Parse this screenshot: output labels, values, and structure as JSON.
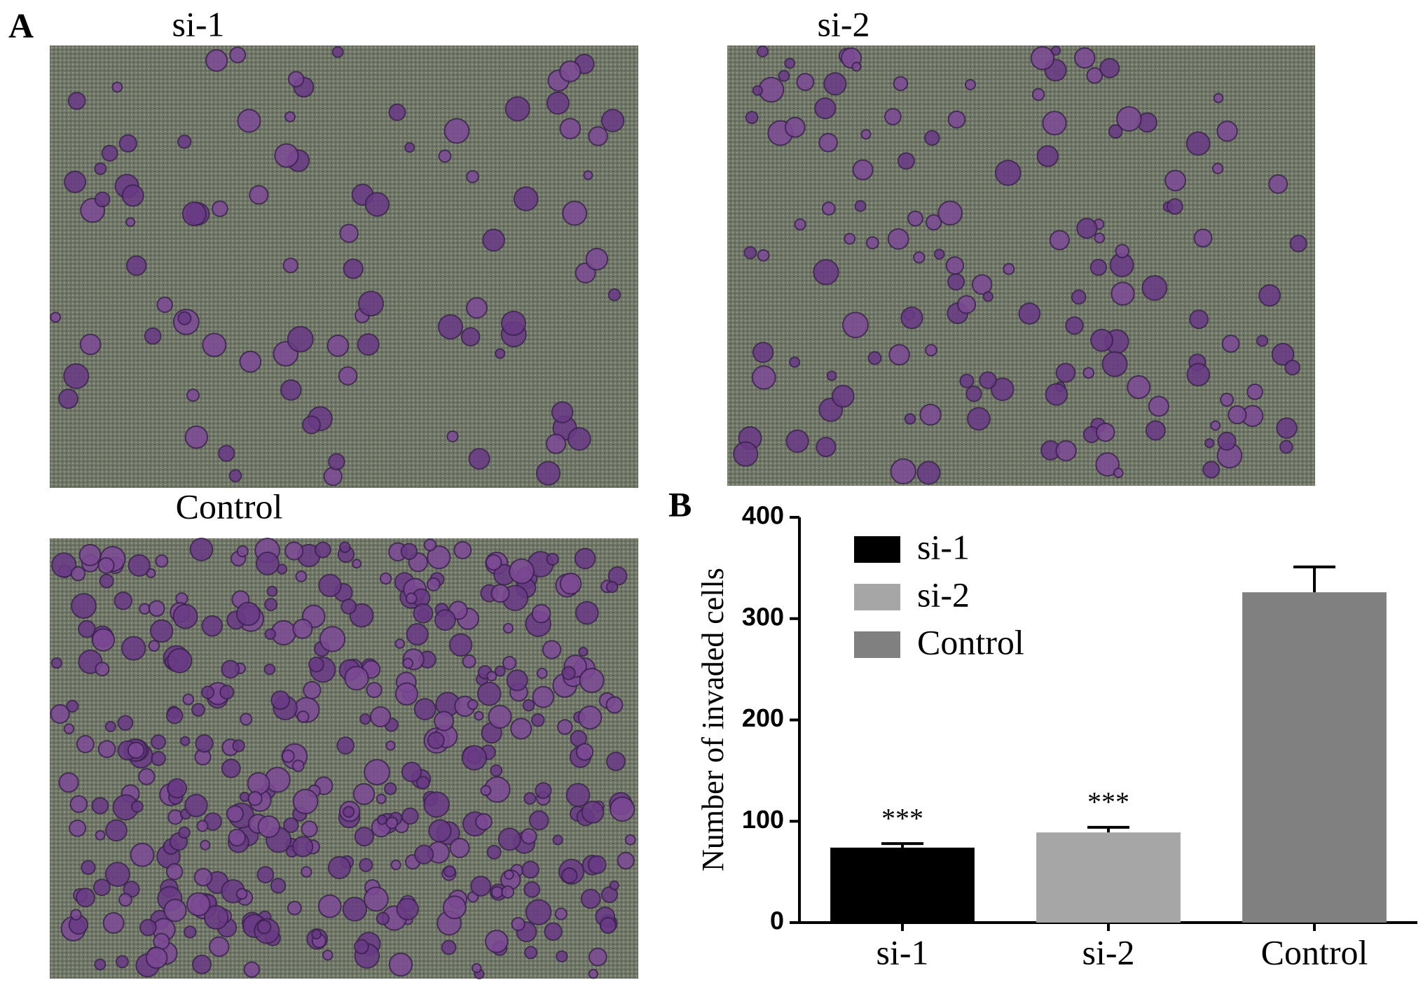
{
  "panel_labels": [
    "A",
    "B"
  ],
  "image_labels": [
    "si-1",
    "si-2",
    "Control"
  ],
  "chart_data": {
    "type": "bar",
    "y_label": "Number of invaded cells",
    "categories": [
      "si-1",
      "si-2",
      "Control"
    ],
    "values": [
      74,
      89,
      326
    ],
    "errors": [
      4,
      5,
      25
    ],
    "colors": [
      "#000000",
      "#a6a6a6",
      "#808080"
    ],
    "significance": [
      "***",
      "***",
      null
    ],
    "ylim": [
      0,
      400
    ],
    "yticks": [
      0,
      100,
      200,
      300,
      400
    ],
    "legend": "upper left"
  }
}
